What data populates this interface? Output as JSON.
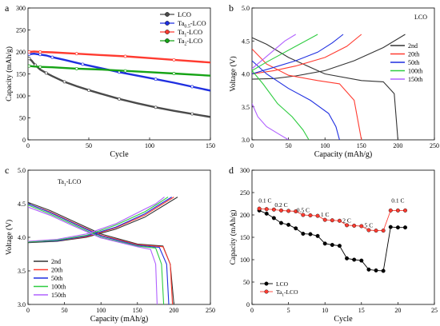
{
  "panel_labels": [
    "a",
    "b",
    "c",
    "d"
  ],
  "colors": {
    "black": "#000000",
    "red": "#ff3b30",
    "blue": "#1f2fe0",
    "green": "#16a316",
    "navy": "#2a2aff",
    "purple": "#b060ff",
    "lightgreen": "#2ecc40",
    "darkgray": "#333333"
  },
  "chart_data": [
    {
      "type": "line",
      "panel": "a",
      "xlabel": "Cycle",
      "ylabel": "Capacity (mAh/g)",
      "xlim": [
        0,
        150
      ],
      "ylim": [
        0,
        300
      ],
      "xticks": [
        0,
        50,
        100,
        150
      ],
      "yticks": [
        0,
        50,
        100,
        150,
        200,
        250,
        300
      ],
      "legend_position": "top-right",
      "series": [
        {
          "name": "LCO",
          "color": "#4a4a4a",
          "x": [
            1,
            3,
            6,
            10,
            15,
            20,
            30,
            40,
            50,
            60,
            75,
            90,
            105,
            120,
            135,
            150
          ],
          "y": [
            185,
            180,
            170,
            160,
            152,
            145,
            132,
            122,
            113,
            105,
            93,
            83,
            74,
            66,
            59,
            52
          ]
        },
        {
          "name": "Ta0.5-LCO",
          "color": "#1f2fe0",
          "x": [
            1,
            5,
            10,
            15,
            20,
            30,
            45,
            60,
            75,
            90,
            105,
            120,
            135,
            150
          ],
          "y": [
            195,
            196,
            194,
            192,
            188,
            182,
            172,
            163,
            154,
            146,
            138,
            130,
            121,
            112
          ]
        },
        {
          "name": "Ta1-LCO",
          "color": "#ff3b30",
          "x": [
            1,
            5,
            10,
            20,
            40,
            60,
            80,
            100,
            120,
            150
          ],
          "y": [
            200,
            201,
            200,
            199,
            196,
            193,
            190,
            186,
            182,
            176
          ]
        },
        {
          "name": "Ta2-LCO",
          "color": "#16a316",
          "x": [
            1,
            5,
            10,
            20,
            40,
            60,
            80,
            100,
            120,
            150
          ],
          "y": [
            168,
            167,
            166,
            165,
            162,
            160,
            157,
            154,
            151,
            146
          ]
        }
      ]
    },
    {
      "type": "line",
      "panel": "b",
      "annotation": "LCO",
      "xlabel": "Capacity (mAh/g)",
      "ylabel": "Voltage (V)",
      "xlim": [
        0,
        250
      ],
      "ylim": [
        3.0,
        5.0
      ],
      "xticks": [
        0,
        50,
        100,
        150,
        200,
        250
      ],
      "yticks": [
        3.0,
        3.5,
        4.0,
        4.5,
        5.0
      ],
      "legend_position": "right",
      "series": [
        {
          "name": "2nd",
          "color": "#333333",
          "charge": {
            "x": [
              0,
              30,
              60,
              100,
              140,
              180,
              210
            ],
            "y": [
              3.92,
              3.93,
              3.97,
              4.05,
              4.2,
              4.4,
              4.6
            ]
          },
          "discharge": {
            "x": [
              0,
              20,
              50,
              100,
              150,
              180,
              195,
              200
            ],
            "y": [
              4.55,
              4.45,
              4.25,
              4.0,
              3.9,
              3.88,
              3.7,
              3.0
            ]
          }
        },
        {
          "name": "20th",
          "color": "#ff3b30",
          "charge": {
            "x": [
              0,
              30,
              60,
              100,
              130,
              150
            ],
            "y": [
              4.0,
              4.05,
              4.12,
              4.25,
              4.42,
              4.6
            ]
          },
          "discharge": {
            "x": [
              0,
              20,
              50,
              90,
              120,
              140,
              150
            ],
            "y": [
              4.38,
              4.15,
              3.98,
              3.9,
              3.85,
              3.6,
              3.0
            ]
          }
        },
        {
          "name": "50th",
          "color": "#1f2fe0",
          "charge": {
            "x": [
              0,
              30,
              60,
              90,
              110,
              125
            ],
            "y": [
              4.0,
              4.1,
              4.2,
              4.33,
              4.47,
              4.6
            ]
          },
          "discharge": {
            "x": [
              0,
              20,
              50,
              80,
              105,
              115,
              120
            ],
            "y": [
              4.2,
              4.0,
              3.78,
              3.6,
              3.4,
              3.2,
              3.0
            ]
          }
        },
        {
          "name": "100th",
          "color": "#2ecc40",
          "charge": {
            "x": [
              0,
              20,
              40,
              60,
              80,
              90
            ],
            "y": [
              4.05,
              4.18,
              4.3,
              4.42,
              4.54,
              4.6
            ]
          },
          "discharge": {
            "x": [
              0,
              15,
              35,
              55,
              70,
              78
            ],
            "y": [
              4.05,
              3.85,
              3.55,
              3.35,
              3.15,
              3.0
            ]
          }
        },
        {
          "name": "150th",
          "color": "#b060ff",
          "charge": {
            "x": [
              0,
              15,
              30,
              45,
              60
            ],
            "y": [
              4.08,
              4.22,
              4.36,
              4.5,
              4.6
            ]
          },
          "discharge": {
            "x": [
              0,
              8,
              20,
              35,
              50
            ],
            "y": [
              3.55,
              3.35,
              3.2,
              3.1,
              3.0
            ]
          }
        }
      ]
    },
    {
      "type": "line",
      "panel": "c",
      "annotation": "Ta1-LCO",
      "xlabel": "Capacity (mAh/g)",
      "ylabel": "Voltage (V)",
      "xlim": [
        0,
        250
      ],
      "ylim": [
        3.0,
        5.0
      ],
      "xticks": [
        0,
        50,
        100,
        150,
        200,
        250
      ],
      "yticks": [
        3.0,
        3.5,
        4.0,
        4.5,
        5.0
      ],
      "legend_position": "bottom-left",
      "series": [
        {
          "name": "2nd",
          "color": "#333333",
          "charge": {
            "x": [
              0,
              40,
              80,
              120,
              160,
              190,
              205
            ],
            "y": [
              3.92,
              3.94,
              4.0,
              4.12,
              4.3,
              4.5,
              4.6
            ]
          },
          "discharge": {
            "x": [
              0,
              30,
              60,
              100,
              150,
              185,
              195,
              200
            ],
            "y": [
              4.52,
              4.4,
              4.25,
              4.05,
              3.9,
              3.87,
              3.6,
              3.0
            ]
          }
        },
        {
          "name": "20th",
          "color": "#ff3b30",
          "charge": {
            "x": [
              0,
              40,
              80,
              120,
              160,
              185,
              200
            ],
            "y": [
              3.93,
              3.95,
              4.01,
              4.14,
              4.33,
              4.5,
              4.6
            ]
          },
          "discharge": {
            "x": [
              0,
              30,
              60,
              100,
              150,
              185,
              195,
              198
            ],
            "y": [
              4.5,
              4.38,
              4.23,
              4.03,
              3.89,
              3.86,
              3.6,
              3.0
            ]
          }
        },
        {
          "name": "50th",
          "color": "#1f2fe0",
          "charge": {
            "x": [
              0,
              40,
              80,
              120,
              160,
              182,
              197
            ],
            "y": [
              3.93,
              3.95,
              4.02,
              4.15,
              4.35,
              4.5,
              4.6
            ]
          },
          "discharge": {
            "x": [
              0,
              30,
              60,
              100,
              150,
              180,
              190,
              193
            ],
            "y": [
              4.5,
              4.37,
              4.22,
              4.02,
              3.88,
              3.85,
              3.6,
              3.0
            ]
          }
        },
        {
          "name": "100th",
          "color": "#2ecc40",
          "charge": {
            "x": [
              0,
              40,
              80,
              120,
              160,
              178,
              192
            ],
            "y": [
              3.93,
              3.96,
              4.03,
              4.18,
              4.38,
              4.5,
              4.6
            ]
          },
          "discharge": {
            "x": [
              0,
              30,
              60,
              100,
              150,
              175,
              183,
              186
            ],
            "y": [
              4.48,
              4.35,
              4.2,
              4.0,
              3.87,
              3.84,
              3.6,
              3.0
            ]
          }
        },
        {
          "name": "150th",
          "color": "#b060ff",
          "charge": {
            "x": [
              0,
              40,
              80,
              120,
              160,
              175,
              187
            ],
            "y": [
              3.94,
              3.97,
              4.05,
              4.2,
              4.42,
              4.5,
              4.6
            ]
          },
          "discharge": {
            "x": [
              0,
              30,
              60,
              100,
              150,
              168,
              175,
              177
            ],
            "y": [
              4.45,
              4.33,
              4.18,
              3.99,
              3.86,
              3.82,
              3.6,
              3.0
            ]
          }
        }
      ]
    },
    {
      "type": "line",
      "panel": "d",
      "xlabel": "Cycle",
      "ylabel": "Capacity (mAh/g)",
      "xlim": [
        0,
        25
      ],
      "ylim": [
        0,
        300
      ],
      "xticks": [
        0,
        5,
        10,
        15,
        20,
        25
      ],
      "yticks": [
        0,
        50,
        100,
        150,
        200,
        250,
        300
      ],
      "legend_position": "bottom-left",
      "rate_labels": [
        {
          "text": "0.1 C",
          "x": 1.8,
          "y": 228
        },
        {
          "text": "0.2 C",
          "x": 4.0,
          "y": 218
        },
        {
          "text": "0.5 C",
          "x": 7.0,
          "y": 206
        },
        {
          "text": "1 C",
          "x": 10.0,
          "y": 196
        },
        {
          "text": "2 C",
          "x": 13.0,
          "y": 183
        },
        {
          "text": "5 C",
          "x": 16.0,
          "y": 172
        },
        {
          "text": "0.1 C",
          "x": 20.0,
          "y": 228
        }
      ],
      "series": [
        {
          "name": "LCO",
          "color": "#000000",
          "x": [
            1,
            2,
            3,
            4,
            5,
            6,
            7,
            8,
            9,
            10,
            11,
            12,
            13,
            14,
            15,
            16,
            17,
            18,
            19,
            20,
            21
          ],
          "y": [
            210,
            203,
            193,
            182,
            178,
            170,
            158,
            157,
            153,
            136,
            133,
            131,
            103,
            100,
            98,
            78,
            76,
            75,
            173,
            172,
            172
          ]
        },
        {
          "name": "Ta1-LCO",
          "color": "#ff3b30",
          "x": [
            1,
            2,
            3,
            4,
            5,
            6,
            7,
            8,
            9,
            10,
            11,
            12,
            13,
            14,
            15,
            16,
            17,
            18,
            19,
            20,
            21
          ],
          "y": [
            214,
            213,
            212,
            210,
            209,
            208,
            200,
            199,
            198,
            189,
            188,
            187,
            177,
            176,
            175,
            166,
            165,
            165,
            210,
            210,
            210
          ]
        }
      ]
    }
  ]
}
